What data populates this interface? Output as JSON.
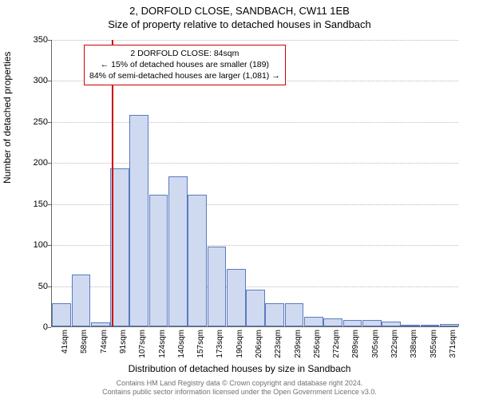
{
  "titles": {
    "line1": "2, DORFOLD CLOSE, SANDBACH, CW11 1EB",
    "line2": "Size of property relative to detached houses in Sandbach"
  },
  "chart": {
    "type": "histogram",
    "ylabel": "Number of detached properties",
    "xlabel": "Distribution of detached houses by size in Sandbach",
    "ylim": [
      0,
      350
    ],
    "ytick_step": 50,
    "bar_fill": "#cfd9f0",
    "bar_stroke": "#5b7bbf",
    "grid_color": "#bbbbbb",
    "axis_color": "#666666",
    "background_color": "#ffffff",
    "categories": [
      "41sqm",
      "58sqm",
      "74sqm",
      "91sqm",
      "107sqm",
      "124sqm",
      "140sqm",
      "157sqm",
      "173sqm",
      "190sqm",
      "206sqm",
      "223sqm",
      "239sqm",
      "256sqm",
      "272sqm",
      "289sqm",
      "305sqm",
      "322sqm",
      "338sqm",
      "355sqm",
      "371sqm"
    ],
    "values": [
      28,
      63,
      5,
      193,
      258,
      160,
      183,
      160,
      97,
      70,
      45,
      28,
      28,
      12,
      10,
      8,
      8,
      6,
      2,
      0,
      3
    ],
    "marker": {
      "value_sqm": 84,
      "color": "#cc0000"
    },
    "annotation": {
      "lines": [
        "2 DORFOLD CLOSE: 84sqm",
        "← 15% of detached houses are smaller (189)",
        "84% of semi-detached houses are larger (1,081) →"
      ],
      "border_color": "#cc0000"
    }
  },
  "footer": {
    "line1": "Contains HM Land Registry data © Crown copyright and database right 2024.",
    "line2": "Contains public sector information licensed under the Open Government Licence v3.0."
  }
}
